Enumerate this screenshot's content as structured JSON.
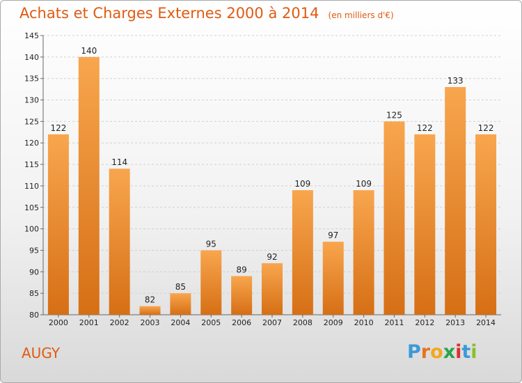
{
  "title": "Achats et Charges Externes 2000 à 2014",
  "unit": "(en milliers d'€)",
  "commune": "AUGY",
  "logo": {
    "letters": [
      "P",
      "r",
      "o",
      "x",
      "i",
      "t",
      "i"
    ],
    "colors": [
      "#3a9ad9",
      "#e8731c",
      "#f2a81d",
      "#2aa34a",
      "#d9322b",
      "#3a9ad9",
      "#8bbf2a"
    ]
  },
  "colors": {
    "accent": "#e05a10",
    "bar_top": "#f8a64e",
    "bar_bottom": "#d66f15"
  },
  "chart_data": {
    "type": "bar",
    "title": "Achats et Charges Externes 2000 à 2014",
    "subtitle": "(en milliers d'€)",
    "categories": [
      "2000",
      "2001",
      "2002",
      "2003",
      "2004",
      "2005",
      "2006",
      "2007",
      "2008",
      "2009",
      "2010",
      "2011",
      "2012",
      "2013",
      "2014"
    ],
    "values": [
      122,
      140,
      114,
      82,
      85,
      95,
      89,
      92,
      109,
      97,
      109,
      125,
      122,
      133,
      122
    ],
    "ylim": [
      80,
      145
    ],
    "yticks": [
      80,
      85,
      90,
      95,
      100,
      105,
      110,
      115,
      120,
      125,
      130,
      135,
      140,
      145
    ],
    "grid": true,
    "legend": "none"
  }
}
